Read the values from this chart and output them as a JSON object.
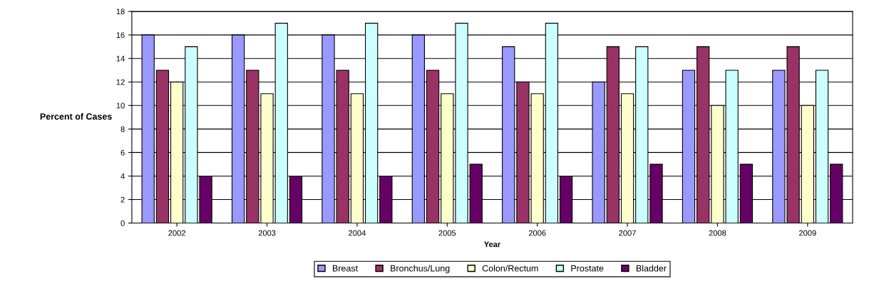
{
  "chart_data": {
    "type": "bar",
    "xlabel": "Year",
    "ylabel": "Percent of Cases",
    "categories": [
      "2002",
      "2003",
      "2004",
      "2005",
      "2006",
      "2007",
      "2008",
      "2009"
    ],
    "series": [
      {
        "name": "Breast",
        "color": "#9999ff",
        "values": [
          16,
          16,
          16,
          16,
          15,
          12,
          13,
          13
        ]
      },
      {
        "name": "Bronchus/Lung",
        "color": "#993366",
        "values": [
          13,
          13,
          13,
          13,
          12,
          15,
          15,
          15
        ]
      },
      {
        "name": "Colon/Rectum",
        "color": "#ffffcc",
        "values": [
          12,
          11,
          11,
          11,
          11,
          11,
          10,
          10
        ]
      },
      {
        "name": "Prostate",
        "color": "#ccffff",
        "values": [
          15,
          17,
          17,
          17,
          17,
          15,
          13,
          13
        ]
      },
      {
        "name": "Bladder",
        "color": "#660066",
        "values": [
          4,
          4,
          4,
          5,
          4,
          5,
          5,
          5
        ]
      }
    ],
    "ylim": [
      0,
      18
    ],
    "yticks": [
      0,
      2,
      4,
      6,
      8,
      10,
      12,
      14,
      16,
      18
    ],
    "grid": "y",
    "legend": "bottom"
  }
}
